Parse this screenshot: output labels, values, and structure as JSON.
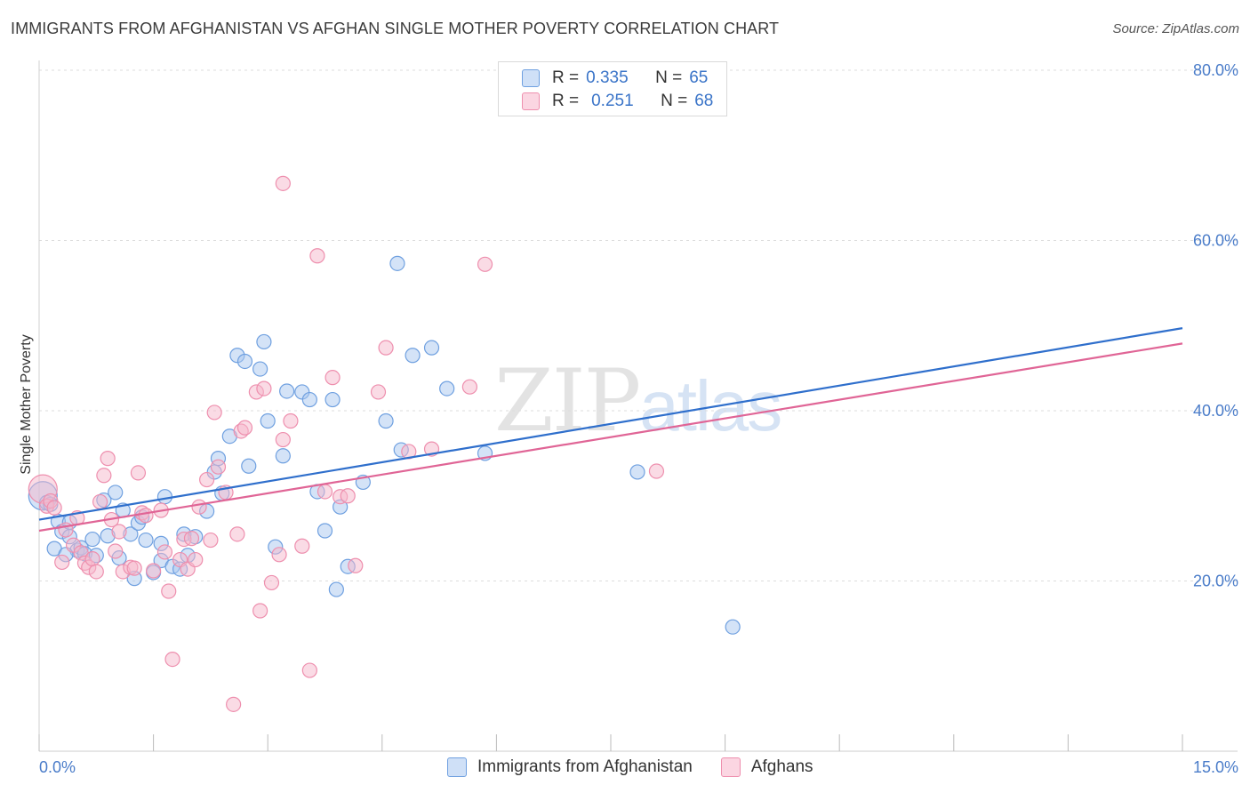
{
  "title": "IMMIGRANTS FROM AFGHANISTAN VS AFGHAN SINGLE MOTHER POVERTY CORRELATION CHART",
  "source": "Source: ZipAtlas.com",
  "watermark": {
    "zip": "ZIP",
    "atlas": "atlas"
  },
  "legend": {
    "rows": [
      {
        "r_label": "R =",
        "r_value": "0.335",
        "n_label": "N =",
        "n_value": "65",
        "color": "#a9c8f0"
      },
      {
        "r_label": "R =",
        "r_value": "0.251",
        "n_label": "N =",
        "n_value": "68",
        "color": "#f6b8cc"
      }
    ]
  },
  "bottom_legend": [
    {
      "label": "Immigrants from Afghanistan",
      "color": "#a9c8f0"
    },
    {
      "label": "Afghans",
      "color": "#f6b8cc"
    }
  ],
  "chart_data": {
    "type": "scatter",
    "title": "IMMIGRANTS FROM AFGHANISTAN VS AFGHAN SINGLE MOTHER POVERTY CORRELATION CHART",
    "xlabel": "",
    "ylabel": "Single Mother Poverty",
    "xlim": [
      0,
      15
    ],
    "ylim": [
      0,
      82
    ],
    "x_tick_labels": [
      "0.0%",
      "15.0%"
    ],
    "y_ticks": [
      20,
      40,
      60,
      80
    ],
    "y_tick_labels": [
      "20.0%",
      "40.0%",
      "60.0%",
      "80.0%"
    ],
    "grid": true,
    "legend_position": "top-center",
    "series": [
      {
        "name": "Immigrants from Afghanistan",
        "color": "#6fa0e0",
        "fill": "#a9c8f0",
        "trend": {
          "x": [
            0,
            15
          ],
          "y": [
            27.2,
            49.7
          ],
          "color": "#2f6fcc"
        },
        "points": [
          [
            0.05,
            30.0
          ],
          [
            0.1,
            29.2
          ],
          [
            0.2,
            23.8
          ],
          [
            0.25,
            27.0
          ],
          [
            0.3,
            25.8
          ],
          [
            0.4,
            26.9
          ],
          [
            0.4,
            25.2
          ],
          [
            0.5,
            23.6
          ],
          [
            0.55,
            23.9
          ],
          [
            0.6,
            23.2
          ],
          [
            0.7,
            24.9
          ],
          [
            0.75,
            23.0
          ],
          [
            0.85,
            29.5
          ],
          [
            0.9,
            25.3
          ],
          [
            1.0,
            30.4
          ],
          [
            1.1,
            28.3
          ],
          [
            1.2,
            25.5
          ],
          [
            1.25,
            20.3
          ],
          [
            1.3,
            26.8
          ],
          [
            1.35,
            27.5
          ],
          [
            1.4,
            24.8
          ],
          [
            1.5,
            21.0
          ],
          [
            1.6,
            22.4
          ],
          [
            1.6,
            24.4
          ],
          [
            1.65,
            29.9
          ],
          [
            1.75,
            21.7
          ],
          [
            1.85,
            21.4
          ],
          [
            1.9,
            25.5
          ],
          [
            1.95,
            23.0
          ],
          [
            2.05,
            25.2
          ],
          [
            2.2,
            28.2
          ],
          [
            2.3,
            32.8
          ],
          [
            2.35,
            34.4
          ],
          [
            2.4,
            30.3
          ],
          [
            2.5,
            37.0
          ],
          [
            2.6,
            46.5
          ],
          [
            2.7,
            45.8
          ],
          [
            2.75,
            33.5
          ],
          [
            2.9,
            44.9
          ],
          [
            2.95,
            48.1
          ],
          [
            3.0,
            38.8
          ],
          [
            3.1,
            24.0
          ],
          [
            3.2,
            34.7
          ],
          [
            3.25,
            42.3
          ],
          [
            3.45,
            42.2
          ],
          [
            3.55,
            41.3
          ],
          [
            3.65,
            30.5
          ],
          [
            3.75,
            25.9
          ],
          [
            3.85,
            41.3
          ],
          [
            3.9,
            19.0
          ],
          [
            3.95,
            28.7
          ],
          [
            4.05,
            21.7
          ],
          [
            4.25,
            31.6
          ],
          [
            4.55,
            38.8
          ],
          [
            4.75,
            35.4
          ],
          [
            4.7,
            57.3
          ],
          [
            4.9,
            46.5
          ],
          [
            5.15,
            47.4
          ],
          [
            5.35,
            42.6
          ],
          [
            5.85,
            35.0
          ],
          [
            7.85,
            32.8
          ],
          [
            9.1,
            14.6
          ],
          [
            0.15,
            29.0
          ],
          [
            0.35,
            23.1
          ],
          [
            1.05,
            22.7
          ]
        ]
      },
      {
        "name": "Afghans",
        "color": "#ee8fae",
        "fill": "#f6b8cc",
        "trend": {
          "x": [
            0,
            15
          ],
          "y": [
            25.9,
            47.9
          ],
          "color": "#e06596"
        },
        "points": [
          [
            0.05,
            30.8
          ],
          [
            0.1,
            28.8
          ],
          [
            0.15,
            29.4
          ],
          [
            0.2,
            28.6
          ],
          [
            0.3,
            22.2
          ],
          [
            0.35,
            26.0
          ],
          [
            0.45,
            24.2
          ],
          [
            0.5,
            27.4
          ],
          [
            0.55,
            23.3
          ],
          [
            0.6,
            22.1
          ],
          [
            0.65,
            21.6
          ],
          [
            0.7,
            22.6
          ],
          [
            0.75,
            21.1
          ],
          [
            0.8,
            29.3
          ],
          [
            0.85,
            32.4
          ],
          [
            0.9,
            34.4
          ],
          [
            0.95,
            27.2
          ],
          [
            1.0,
            23.5
          ],
          [
            1.05,
            25.8
          ],
          [
            1.1,
            21.1
          ],
          [
            1.2,
            21.6
          ],
          [
            1.25,
            21.5
          ],
          [
            1.3,
            32.7
          ],
          [
            1.35,
            28.0
          ],
          [
            1.4,
            27.7
          ],
          [
            1.5,
            21.2
          ],
          [
            1.6,
            28.3
          ],
          [
            1.65,
            23.4
          ],
          [
            1.7,
            18.8
          ],
          [
            1.75,
            10.8
          ],
          [
            1.85,
            22.5
          ],
          [
            1.9,
            24.9
          ],
          [
            1.95,
            21.4
          ],
          [
            2.0,
            25.0
          ],
          [
            2.05,
            22.5
          ],
          [
            2.1,
            28.7
          ],
          [
            2.2,
            31.9
          ],
          [
            2.25,
            24.8
          ],
          [
            2.3,
            39.8
          ],
          [
            2.35,
            33.4
          ],
          [
            2.45,
            30.4
          ],
          [
            2.6,
            25.5
          ],
          [
            2.65,
            37.6
          ],
          [
            2.7,
            38.0
          ],
          [
            2.85,
            42.2
          ],
          [
            2.9,
            16.5
          ],
          [
            2.95,
            42.6
          ],
          [
            3.05,
            19.8
          ],
          [
            3.15,
            23.1
          ],
          [
            3.2,
            36.6
          ],
          [
            3.2,
            66.7
          ],
          [
            3.3,
            38.8
          ],
          [
            3.45,
            24.1
          ],
          [
            3.55,
            9.5
          ],
          [
            3.65,
            58.2
          ],
          [
            3.75,
            30.5
          ],
          [
            3.85,
            43.9
          ],
          [
            3.95,
            29.9
          ],
          [
            4.05,
            30.0
          ],
          [
            4.15,
            21.8
          ],
          [
            4.45,
            42.2
          ],
          [
            4.55,
            47.4
          ],
          [
            4.85,
            35.2
          ],
          [
            5.15,
            35.5
          ],
          [
            5.65,
            42.8
          ],
          [
            5.85,
            57.2
          ],
          [
            8.1,
            32.9
          ],
          [
            2.55,
            5.5
          ]
        ]
      }
    ]
  }
}
